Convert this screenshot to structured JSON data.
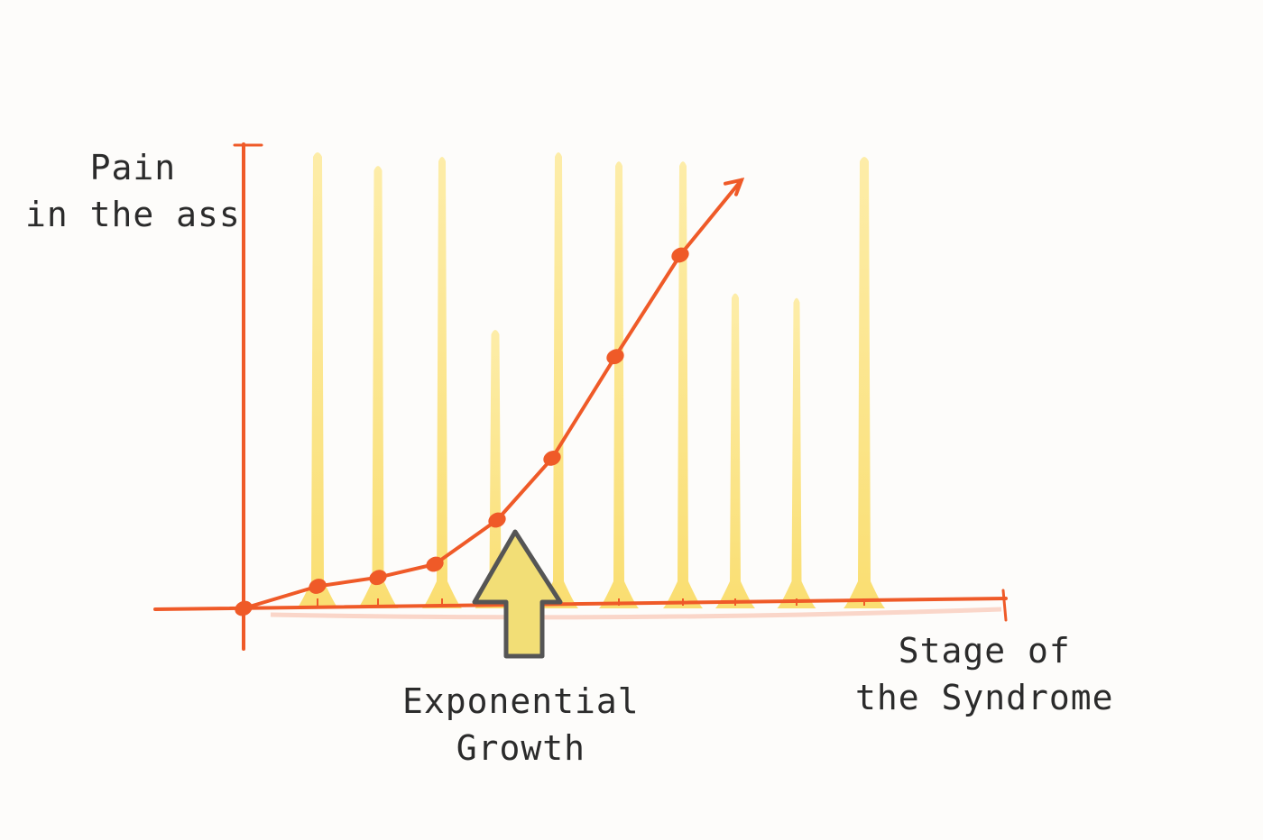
{
  "chart_data": {
    "type": "line",
    "xlabel_lines": [
      "Stage",
      "of",
      "the Syndrome"
    ],
    "ylabel_lines": [
      "Pain",
      "in the ass"
    ],
    "x": [
      0,
      1,
      2,
      3,
      4,
      5,
      6,
      7,
      8
    ],
    "values": [
      0,
      0.5,
      0.7,
      1.0,
      2.0,
      3.4,
      5.7,
      8.0,
      9.7
    ],
    "xlim": [
      -1.5,
      12.8
    ],
    "ylim": [
      0,
      10
    ],
    "grid": true,
    "bar_heights": [
      10,
      9.7,
      9.9,
      6.1,
      10,
      9.8,
      9.8,
      6.9,
      6.8,
      9.9
    ],
    "annotation": {
      "lines": [
        "Exponential",
        "Growth"
      ],
      "x": 4.3,
      "icon": "up-arrow-icon"
    },
    "colors": {
      "axis": "#ef5a28",
      "line": "#ef5a28",
      "bars": "#fce37a",
      "arrow_fill": "#f2de76",
      "arrow_stroke": "#555555"
    }
  }
}
